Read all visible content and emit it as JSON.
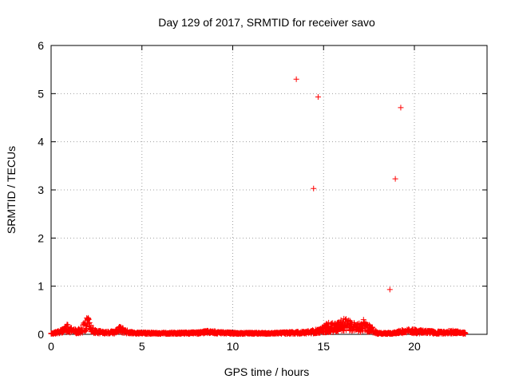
{
  "chart_data": {
    "type": "scatter",
    "title": "Day 129 of 2017, SRMTID for receiver savo",
    "xlabel": "GPS time / hours",
    "ylabel": "SRMTID / TECUs",
    "xlim": [
      0,
      24
    ],
    "ylim": [
      0,
      6
    ],
    "xticks": [
      0,
      5,
      10,
      15,
      20
    ],
    "yticks": [
      0,
      1,
      2,
      3,
      4,
      5,
      6
    ],
    "grid": true,
    "marker": "+",
    "color": "#ff0000",
    "outliers": [
      {
        "x": 13.5,
        "y": 5.3
      },
      {
        "x": 14.7,
        "y": 4.93
      },
      {
        "x": 14.45,
        "y": 3.03
      },
      {
        "x": 18.95,
        "y": 3.23
      },
      {
        "x": 19.25,
        "y": 4.71
      },
      {
        "x": 18.65,
        "y": 0.93
      }
    ],
    "baseline_profile": [
      [
        0.0,
        0.02
      ],
      [
        0.3,
        0.05
      ],
      [
        0.6,
        0.1
      ],
      [
        0.9,
        0.18
      ],
      [
        1.1,
        0.12
      ],
      [
        1.4,
        0.08
      ],
      [
        1.7,
        0.12
      ],
      [
        1.9,
        0.3
      ],
      [
        2.0,
        0.45
      ],
      [
        2.1,
        0.25
      ],
      [
        2.4,
        0.08
      ],
      [
        3.0,
        0.05
      ],
      [
        3.5,
        0.06
      ],
      [
        3.8,
        0.15
      ],
      [
        4.1,
        0.08
      ],
      [
        4.5,
        0.04
      ],
      [
        6.0,
        0.03
      ],
      [
        8.0,
        0.04
      ],
      [
        8.6,
        0.07
      ],
      [
        10.0,
        0.03
      ],
      [
        12.0,
        0.03
      ],
      [
        13.0,
        0.04
      ],
      [
        14.0,
        0.05
      ],
      [
        14.8,
        0.1
      ],
      [
        15.2,
        0.2
      ],
      [
        15.8,
        0.22
      ],
      [
        16.2,
        0.3
      ],
      [
        16.8,
        0.18
      ],
      [
        17.2,
        0.27
      ],
      [
        17.6,
        0.15
      ],
      [
        18.0,
        0.03
      ],
      [
        18.8,
        0.03
      ],
      [
        19.5,
        0.1
      ],
      [
        20.5,
        0.07
      ],
      [
        21.5,
        0.05
      ],
      [
        22.2,
        0.07
      ],
      [
        22.8,
        0.03
      ]
    ]
  }
}
